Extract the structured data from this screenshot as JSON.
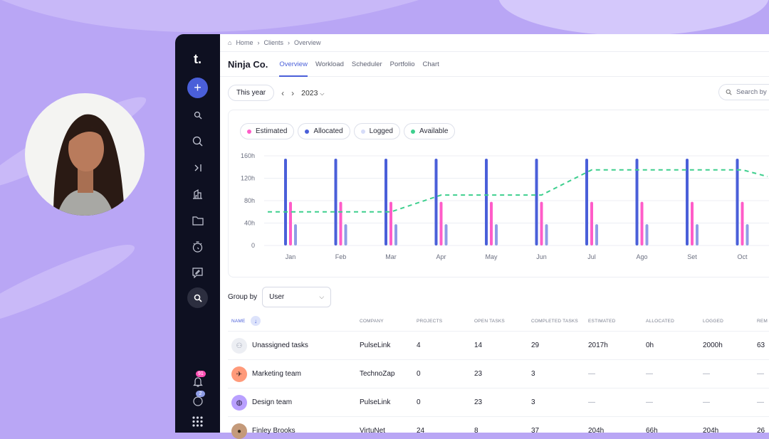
{
  "breadcrumb": [
    "Home",
    "Clients",
    "Overview"
  ],
  "client_name": "Ninja Co.",
  "tabs": [
    {
      "label": "Overview",
      "active": true
    },
    {
      "label": "Workload"
    },
    {
      "label": "Scheduler"
    },
    {
      "label": "Portfolio"
    },
    {
      "label": "Chart"
    }
  ],
  "toolbar": {
    "range": "This year",
    "year": "2023",
    "search_placeholder": "Search by"
  },
  "sidebar": {
    "logo": "t.",
    "notifications_badge": "91",
    "messages_badge": "2"
  },
  "group_by": {
    "label": "Group by",
    "value": "User"
  },
  "colors": {
    "accent": "#4a5fd9",
    "estimated": "#ff5cc8",
    "allocated": "#4a5fd9",
    "logged": "#8f9de6",
    "available": "#3ecf8e",
    "sidebar": "#0e1021"
  },
  "chart_data": {
    "type": "bar",
    "legend": [
      "Estimated",
      "Allocated",
      "Logged",
      "Available"
    ],
    "categories": [
      "Jan",
      "Feb",
      "Mar",
      "Apr",
      "May",
      "Jun",
      "Jul",
      "Ago",
      "Set",
      "Oct"
    ],
    "y_ticks": [
      "0",
      "40h",
      "80h",
      "120h",
      "160h"
    ],
    "ylim": [
      0,
      160
    ],
    "grid": true,
    "series": [
      {
        "name": "Allocated",
        "type": "bar",
        "values": [
          155,
          155,
          155,
          155,
          155,
          155,
          155,
          155,
          155,
          155
        ]
      },
      {
        "name": "Estimated",
        "type": "bar",
        "values": [
          78,
          78,
          78,
          78,
          78,
          78,
          78,
          78,
          78,
          78
        ]
      },
      {
        "name": "Logged",
        "type": "bar",
        "values": [
          38,
          38,
          38,
          38,
          38,
          38,
          38,
          38,
          38,
          38
        ]
      },
      {
        "name": "Available",
        "type": "line",
        "values": [
          60,
          60,
          60,
          90,
          90,
          90,
          135,
          135,
          135,
          135
        ]
      }
    ]
  },
  "table": {
    "headers": [
      "NAME",
      "COMPANY",
      "PROJECTS",
      "OPEN TASKS",
      "COMPLETED TASKS",
      "ESTIMATED",
      "ALLOCATED",
      "LOGGED",
      "REM"
    ],
    "rows": [
      {
        "name": "Unassigned tasks",
        "cells": [
          "PulseLink",
          "4",
          "14",
          "29",
          "2017h",
          "0h",
          "2000h",
          "63"
        ]
      },
      {
        "name": "Marketing team",
        "cells": [
          "TechnoZap",
          "0",
          "23",
          "3",
          "—",
          "—",
          "—",
          "—"
        ]
      },
      {
        "name": "Design team",
        "cells": [
          "PulseLink",
          "0",
          "23",
          "3",
          "—",
          "—",
          "—",
          "—"
        ]
      },
      {
        "name": "Finley Brooks",
        "cells": [
          "VirtuNet",
          "24",
          "8",
          "37",
          "204h",
          "66h",
          "204h",
          "26"
        ]
      }
    ]
  }
}
